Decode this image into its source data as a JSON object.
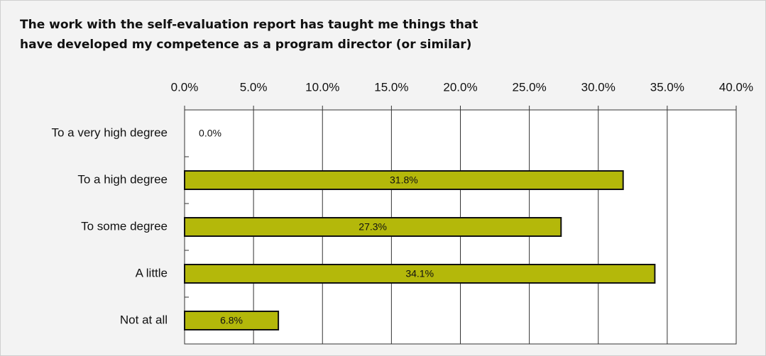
{
  "chart_data": {
    "type": "bar",
    "orientation": "horizontal",
    "title": [
      "The work with the self-evaluation report has taught me things that",
      "have developed my competence as a program director (or similar)"
    ],
    "categories": [
      "To a very high degree",
      "To a high degree",
      "To some degree",
      "A little",
      "Not at all"
    ],
    "values": [
      0,
      31.8,
      27.3,
      34.1,
      6.8
    ],
    "value_labels": [
      "0.0%",
      "31.8%",
      "27.3%",
      "34.1%",
      "6.8%"
    ],
    "color": "#b4b80a",
    "xlim": [
      0,
      40
    ],
    "xticks": [
      {
        "value": 0,
        "label": "0.0%"
      },
      {
        "value": 5,
        "label": "5.0%"
      },
      {
        "value": 10,
        "label": "10.0%"
      },
      {
        "value": 15,
        "label": "15.0%"
      },
      {
        "value": 20,
        "label": "20.0%"
      },
      {
        "value": 25,
        "label": "25.0%"
      },
      {
        "value": 30,
        "label": "30.0%"
      },
      {
        "value": 35,
        "label": "35.0%"
      },
      {
        "value": 40,
        "label": "40.0%"
      }
    ],
    "grid": true
  }
}
